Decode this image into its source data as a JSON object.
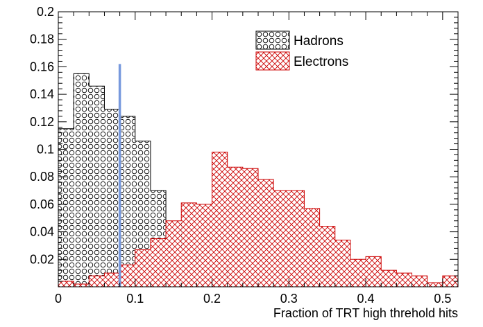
{
  "chart_data": {
    "type": "histogram",
    "xlabel": "Fraction of TRT high threhold hits",
    "ylabel": "",
    "xlim": [
      0,
      0.52
    ],
    "ylim": [
      0,
      0.2
    ],
    "bin_width": 0.02,
    "x_ticks": [
      0,
      0.1,
      0.2,
      0.3,
      0.4,
      0.5
    ],
    "x_tick_labels": [
      "0",
      "0.1",
      "0.2",
      "0.3",
      "0.4",
      "0.5"
    ],
    "y_ticks": [
      0.02,
      0.04,
      0.06,
      0.08,
      0.1,
      0.12,
      0.14,
      0.16,
      0.18,
      0.2
    ],
    "y_tick_labels": [
      "0.02",
      "0.04",
      "0.06",
      "0.08",
      "0.1",
      "0.12",
      "0.14",
      "0.16",
      "0.18",
      "0.2"
    ],
    "legend_placement": "top-right",
    "series": [
      {
        "name": "Hadrons",
        "fill": "circles",
        "color": "#000000",
        "bin_edges": [
          0,
          0.02,
          0.04,
          0.06,
          0.08,
          0.1,
          0.12,
          0.14,
          0.16,
          0.18,
          0.2,
          0.22,
          0.24,
          0.26,
          0.28,
          0.3,
          0.32,
          0.34,
          0.36,
          0.38,
          0.4
        ],
        "values": [
          0.115,
          0.155,
          0.146,
          0.129,
          0.124,
          0.106,
          0.07,
          0.047,
          0.028,
          0.016,
          0.016,
          0.006,
          0.005,
          0.004,
          0.002,
          0.001,
          0.001,
          0.001,
          0.001,
          0.001
        ]
      },
      {
        "name": "Electrons",
        "fill": "crosshatch",
        "color": "#cc0000",
        "bin_edges": [
          0,
          0.02,
          0.04,
          0.06,
          0.08,
          0.1,
          0.12,
          0.14,
          0.16,
          0.18,
          0.2,
          0.22,
          0.24,
          0.26,
          0.28,
          0.3,
          0.32,
          0.34,
          0.36,
          0.38,
          0.4,
          0.42,
          0.44,
          0.46,
          0.48,
          0.5,
          0.52
        ],
        "values": [
          0.004,
          0.002,
          0.008,
          0.01,
          0.016,
          0.027,
          0.035,
          0.048,
          0.061,
          0.06,
          0.098,
          0.087,
          0.086,
          0.078,
          0.07,
          0.07,
          0.057,
          0.044,
          0.034,
          0.02,
          0.022,
          0.012,
          0.01,
          0.008,
          0.003,
          0.008
        ]
      }
    ],
    "cut_line": {
      "x": 0.08,
      "y_top": 0.162,
      "color": "#7799dd"
    }
  }
}
